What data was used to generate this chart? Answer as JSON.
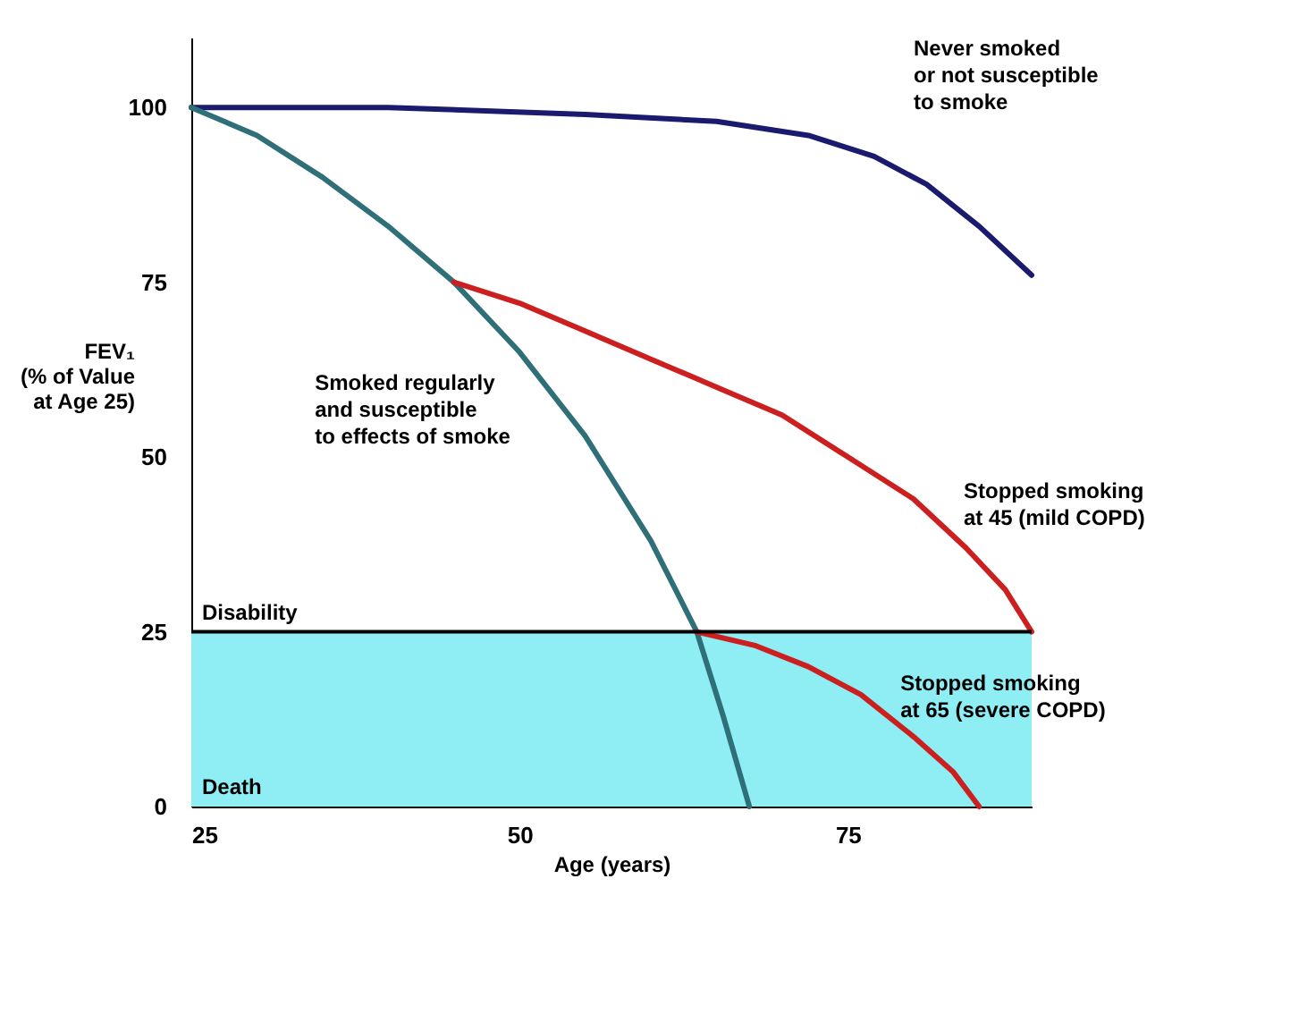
{
  "chart_data": {
    "type": "line",
    "xlabel": "Age (years)",
    "ylabel": "FEV₁\n(% of Value\nat Age 25)",
    "xlim": [
      25,
      89
    ],
    "ylim": [
      0,
      110
    ],
    "xticks": [
      25,
      50,
      75
    ],
    "yticks": [
      0,
      25,
      50,
      75,
      100
    ],
    "series": [
      {
        "name": "Never smoked\nor not susceptible\nto smoke",
        "color": "#1a1a6e",
        "x": [
          25,
          40,
          55,
          65,
          72,
          77,
          81,
          85,
          89
        ],
        "values": [
          100,
          100,
          99,
          98,
          96,
          93,
          89,
          83,
          76
        ]
      },
      {
        "name": "Smoked regularly\nand susceptible\nto effects of smoke",
        "color": "#2e6f78",
        "x": [
          25,
          30,
          35,
          40,
          45,
          50,
          55,
          60,
          63.5,
          65.5,
          67.5
        ],
        "values": [
          100,
          96,
          90,
          83,
          75,
          65,
          53,
          38,
          25,
          13,
          0
        ]
      },
      {
        "name": "Stopped smoking\nat 45 (mild COPD)",
        "color": "#cc1f1f",
        "x": [
          45,
          50,
          55,
          60,
          65,
          70,
          75,
          80,
          84,
          87,
          89
        ],
        "values": [
          75,
          72,
          68,
          64,
          60,
          56,
          50,
          44,
          37,
          31,
          25
        ]
      },
      {
        "name": "Stopped smoking\nat 65 (severe COPD)",
        "color": "#cc1f1f",
        "x": [
          63.5,
          68,
          72,
          76,
          80,
          83,
          85
        ],
        "values": [
          25,
          23,
          20,
          16,
          10,
          5,
          0
        ]
      }
    ],
    "bands": [
      {
        "axis": "y",
        "from": 0,
        "to": 25,
        "label": "Death",
        "color": "#8eeef4"
      }
    ],
    "ref_lines": [
      {
        "axis": "y",
        "value": 25,
        "label": "Disability",
        "color": "#000000"
      }
    ]
  }
}
